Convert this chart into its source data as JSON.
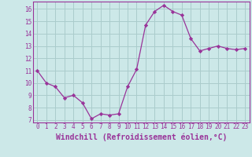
{
  "x": [
    0,
    1,
    2,
    3,
    4,
    5,
    6,
    7,
    8,
    9,
    10,
    11,
    12,
    13,
    14,
    15,
    16,
    17,
    18,
    19,
    20,
    21,
    22,
    23
  ],
  "y": [
    11.0,
    10.0,
    9.7,
    8.8,
    9.0,
    8.4,
    7.1,
    7.5,
    7.4,
    7.5,
    9.7,
    11.1,
    14.7,
    15.8,
    16.3,
    15.8,
    15.5,
    13.6,
    12.6,
    12.8,
    13.0,
    12.8,
    12.7,
    12.8
  ],
  "line_color": "#993399",
  "marker": "D",
  "marker_size": 2.2,
  "bg_color": "#cce8e8",
  "grid_color": "#aacccc",
  "xlabel": "Windchill (Refroidissement éolien,°C)",
  "xlim": [
    -0.5,
    23.5
  ],
  "ylim": [
    6.8,
    16.6
  ],
  "yticks": [
    7,
    8,
    9,
    10,
    11,
    12,
    13,
    14,
    15,
    16
  ],
  "xticks": [
    0,
    1,
    2,
    3,
    4,
    5,
    6,
    7,
    8,
    9,
    10,
    11,
    12,
    13,
    14,
    15,
    16,
    17,
    18,
    19,
    20,
    21,
    22,
    23
  ],
  "tick_label_size": 5.5,
  "xlabel_size": 7.0,
  "axis_color": "#993399",
  "spine_color": "#993399"
}
